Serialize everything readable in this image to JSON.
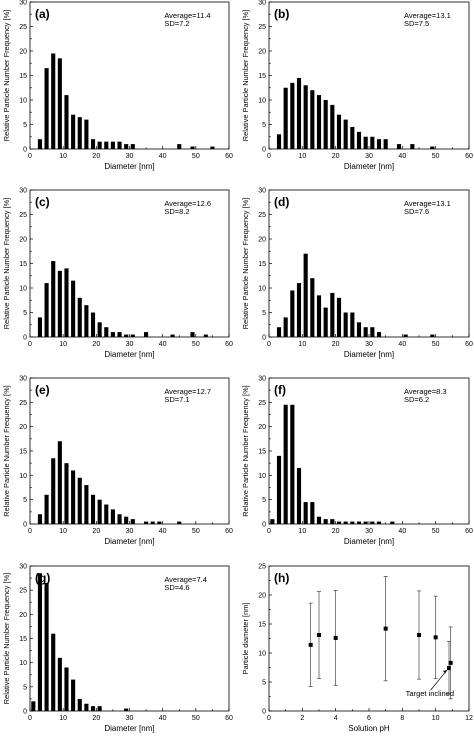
{
  "chart_data": [
    {
      "type": "bar",
      "panel": "(a)",
      "xlabel": "Diameter [nm]",
      "ylabel": "Relative Particle Number Frequency [%]",
      "xlim": [
        0,
        60
      ],
      "ylim": [
        0,
        30
      ],
      "xticks": [
        "0",
        "10",
        "20",
        "30",
        "40",
        "50",
        "60"
      ],
      "yticks": [
        "0",
        "5",
        "10",
        "15",
        "20",
        "25",
        "30"
      ],
      "annotation": [
        "Average=11.4",
        "SD=7.2"
      ],
      "x": [
        3,
        5,
        7,
        9,
        11,
        13,
        15,
        17,
        19,
        21,
        23,
        25,
        27,
        29,
        31,
        45,
        49,
        55
      ],
      "values": [
        2,
        16.5,
        19.5,
        18.5,
        11,
        7,
        6.5,
        6,
        2,
        1.5,
        1.5,
        1.5,
        1.5,
        1,
        1,
        1,
        0.5,
        0.5
      ]
    },
    {
      "type": "bar",
      "panel": "(b)",
      "xlabel": "Diameter [nm]",
      "ylabel": "Relative Particle Number Frequency [%]",
      "xlim": [
        0,
        60
      ],
      "ylim": [
        0,
        30
      ],
      "xticks": [
        "0",
        "10",
        "20",
        "30",
        "40",
        "50",
        "60"
      ],
      "yticks": [
        "0",
        "5",
        "10",
        "15",
        "20",
        "25",
        "30"
      ],
      "annotation": [
        "Average=13.1",
        "SD=7.5"
      ],
      "x": [
        3,
        5,
        7,
        9,
        11,
        13,
        15,
        17,
        19,
        21,
        23,
        25,
        27,
        29,
        31,
        33,
        35,
        39,
        43,
        49
      ],
      "values": [
        3,
        12.5,
        13.5,
        14.5,
        13,
        12,
        11,
        10,
        9,
        7,
        6,
        4.5,
        3.5,
        2.5,
        2.5,
        2,
        2,
        1,
        1,
        0.5
      ]
    },
    {
      "type": "bar",
      "panel": "(c)",
      "xlabel": "Diameter [nm]",
      "ylabel": "Relative Particle Number Frequency [%]",
      "xlim": [
        0,
        60
      ],
      "ylim": [
        0,
        30
      ],
      "xticks": [
        "0",
        "10",
        "20",
        "30",
        "40",
        "50",
        "60"
      ],
      "yticks": [
        "0",
        "5",
        "10",
        "15",
        "20",
        "25",
        "30"
      ],
      "annotation": [
        "Average=12.6",
        "SD=8.2"
      ],
      "x": [
        3,
        5,
        7,
        9,
        11,
        13,
        15,
        17,
        19,
        21,
        23,
        25,
        27,
        29,
        31,
        35,
        43,
        49,
        53
      ],
      "values": [
        4,
        11,
        15.5,
        13.5,
        14,
        11.5,
        8,
        6.5,
        5,
        3,
        2,
        1,
        1,
        0.5,
        0.5,
        1,
        0.5,
        1,
        0.5
      ]
    },
    {
      "type": "bar",
      "panel": "(d)",
      "xlabel": "Diameter [nm]",
      "ylabel": "Relative Particle Number Frequency [%]",
      "xlim": [
        0,
        60
      ],
      "ylim": [
        0,
        30
      ],
      "xticks": [
        "0",
        "10",
        "20",
        "30",
        "40",
        "50",
        "60"
      ],
      "yticks": [
        "0",
        "5",
        "10",
        "15",
        "20",
        "25",
        "30"
      ],
      "annotation": [
        "Average=13.1",
        "SD=7.6"
      ],
      "x": [
        3,
        5,
        7,
        9,
        11,
        13,
        15,
        17,
        19,
        21,
        23,
        25,
        27,
        29,
        31,
        33,
        41,
        49
      ],
      "values": [
        2,
        4,
        9.5,
        11,
        17,
        12,
        8.5,
        6,
        9,
        8,
        5,
        5,
        3,
        2,
        2,
        1,
        0.5,
        0.5
      ]
    },
    {
      "type": "bar",
      "panel": "(e)",
      "xlabel": "Diameter [nm]",
      "ylabel": "Relative Particle Number Frequency [%]",
      "xlim": [
        0,
        60
      ],
      "ylim": [
        0,
        30
      ],
      "xticks": [
        "0",
        "10",
        "20",
        "30",
        "40",
        "50",
        "60"
      ],
      "yticks": [
        "0",
        "5",
        "10",
        "15",
        "20",
        "25",
        "30"
      ],
      "annotation": [
        "Average=12.7",
        "SD=7.1"
      ],
      "x": [
        3,
        5,
        7,
        9,
        11,
        13,
        15,
        17,
        19,
        21,
        23,
        25,
        27,
        29,
        31,
        35,
        37,
        39,
        45
      ],
      "values": [
        2,
        6,
        13.5,
        17,
        12.5,
        11,
        9.5,
        8,
        6,
        5,
        4,
        3,
        2,
        1.5,
        1,
        0.5,
        0.5,
        0.5,
        0.5
      ]
    },
    {
      "type": "bar",
      "panel": "(f)",
      "xlabel": "Diameter [nm]",
      "ylabel": "Relative Particle Number Frequency [%]",
      "xlim": [
        0,
        60
      ],
      "ylim": [
        0,
        30
      ],
      "xticks": [
        "0",
        "10",
        "20",
        "30",
        "40",
        "50",
        "60"
      ],
      "yticks": [
        "0",
        "5",
        "10",
        "15",
        "20",
        "25",
        "30"
      ],
      "annotation": [
        "Average=8.3",
        "SD=6.2"
      ],
      "x": [
        1,
        3,
        5,
        7,
        9,
        11,
        13,
        15,
        17,
        19,
        21,
        23,
        25,
        27,
        29,
        31,
        33,
        37
      ],
      "values": [
        1,
        14,
        24.5,
        24.5,
        11.5,
        4.5,
        4.5,
        1.5,
        1,
        1,
        0.5,
        0.5,
        0.5,
        0.5,
        0.5,
        0.5,
        0.5,
        0.5
      ]
    },
    {
      "type": "bar",
      "panel": "(g)",
      "xlabel": "Diameter [nm]",
      "ylabel": "Relative Particle Number Frequency [%]",
      "xlim": [
        0,
        60
      ],
      "ylim": [
        0,
        30
      ],
      "xticks": [
        "0",
        "10",
        "20",
        "30",
        "40",
        "50",
        "60"
      ],
      "yticks": [
        "0",
        "5",
        "10",
        "15",
        "20",
        "25",
        "30"
      ],
      "annotation": [
        "Average=7.4",
        "SD=4.6"
      ],
      "x": [
        1,
        3,
        5,
        7,
        9,
        11,
        13,
        15,
        17,
        19,
        21,
        29
      ],
      "values": [
        2,
        28.5,
        26.5,
        16,
        11,
        9,
        6.5,
        2.5,
        1.5,
        1,
        1,
        0.5
      ]
    },
    {
      "type": "scatter",
      "panel": "(h)",
      "xlabel": "Solution pH",
      "ylabel": "Particle diameter [nm]",
      "xlim": [
        0,
        12
      ],
      "ylim": [
        0,
        25
      ],
      "xticks": [
        "0",
        "2",
        "4",
        "6",
        "8",
        "10",
        "12"
      ],
      "yticks": [
        "0",
        "5",
        "10",
        "15",
        "20",
        "25"
      ],
      "annotation": [
        "Target inclined"
      ],
      "x": [
        2.5,
        3,
        4,
        7,
        9,
        10,
        10.8,
        10.9
      ],
      "values": [
        11.4,
        13.1,
        12.6,
        14.2,
        13.1,
        12.7,
        7.4,
        8.3
      ],
      "errors": [
        7.2,
        7.5,
        8.2,
        9,
        7.6,
        7.1,
        4.6,
        6.2
      ]
    }
  ]
}
